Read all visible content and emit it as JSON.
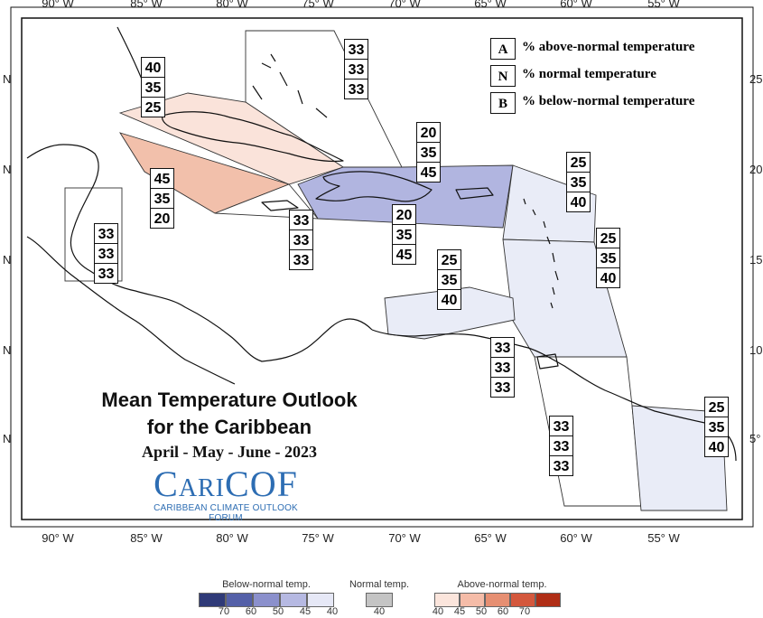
{
  "map": {
    "lon_labels": [
      "90° W",
      "85° W",
      "80° W",
      "75° W",
      "70° W",
      "65° W",
      "60° W",
      "55° W"
    ],
    "lat_labels_left": [
      "N",
      "N",
      "N",
      "N",
      "N"
    ],
    "lat_labels_right": [
      "25",
      "20",
      "15",
      "10",
      "5°"
    ],
    "colors": {
      "above_40": "#fae3da",
      "above_45": "#f2c0ab",
      "below_40": "#e9ecf7",
      "below_45": "#b1b5e0",
      "normal": "#c9c9c9",
      "land": "#111111"
    }
  },
  "legend_keys": [
    {
      "key": "A",
      "text": "% above-normal temperature"
    },
    {
      "key": "N",
      "text": "% normal temperature"
    },
    {
      "key": "B",
      "text": "% below-normal temperature"
    }
  ],
  "regions": [
    {
      "name": "cuba",
      "values": [
        "40",
        "35",
        "25"
      ]
    },
    {
      "name": "bahamas",
      "values": [
        "33",
        "33",
        "33"
      ]
    },
    {
      "name": "cayman-jamaica",
      "values": [
        "45",
        "35",
        "20"
      ]
    },
    {
      "name": "belize-honduras",
      "values": [
        "33",
        "33",
        "33"
      ]
    },
    {
      "name": "jamaica-south",
      "values": [
        "33",
        "33",
        "33"
      ]
    },
    {
      "name": "hispaniola-north",
      "values": [
        "20",
        "35",
        "45"
      ]
    },
    {
      "name": "hispaniola-south",
      "values": [
        "20",
        "35",
        "45"
      ]
    },
    {
      "name": "leeward-islands",
      "values": [
        "25",
        "35",
        "40"
      ]
    },
    {
      "name": "windward-islands",
      "values": [
        "25",
        "35",
        "40"
      ]
    },
    {
      "name": "abc-islands",
      "values": [
        "25",
        "35",
        "40"
      ]
    },
    {
      "name": "trinidad",
      "values": [
        "33",
        "33",
        "33"
      ]
    },
    {
      "name": "guyana",
      "values": [
        "33",
        "33",
        "33"
      ]
    },
    {
      "name": "suriname-guiana",
      "values": [
        "25",
        "35",
        "40"
      ]
    }
  ],
  "title": {
    "line1": "Mean Temperature Outlook",
    "line2": "for the Caribbean",
    "line3": "April - May - June - 2023",
    "logo": "CariCOF",
    "logo_sub": "CARIBBEAN CLIMATE OUTLOOK FORUM"
  },
  "color_scale": {
    "below": {
      "title": "Below-normal temp.",
      "ticks": [
        "70",
        "60",
        "50",
        "45",
        "40"
      ],
      "colors": [
        "#2f3a78",
        "#5460a8",
        "#8b90cc",
        "#b6b9e2",
        "#e6e8f6"
      ]
    },
    "normal": {
      "title": "Normal temp.",
      "ticks": [
        "40"
      ],
      "colors": [
        "#c4c4c4"
      ]
    },
    "above": {
      "title": "Above-normal temp.",
      "ticks": [
        "40",
        "45",
        "50",
        "60",
        "70"
      ],
      "colors": [
        "#fbe5dc",
        "#f5bca8",
        "#e68f72",
        "#d4583d",
        "#b02e16"
      ]
    }
  }
}
